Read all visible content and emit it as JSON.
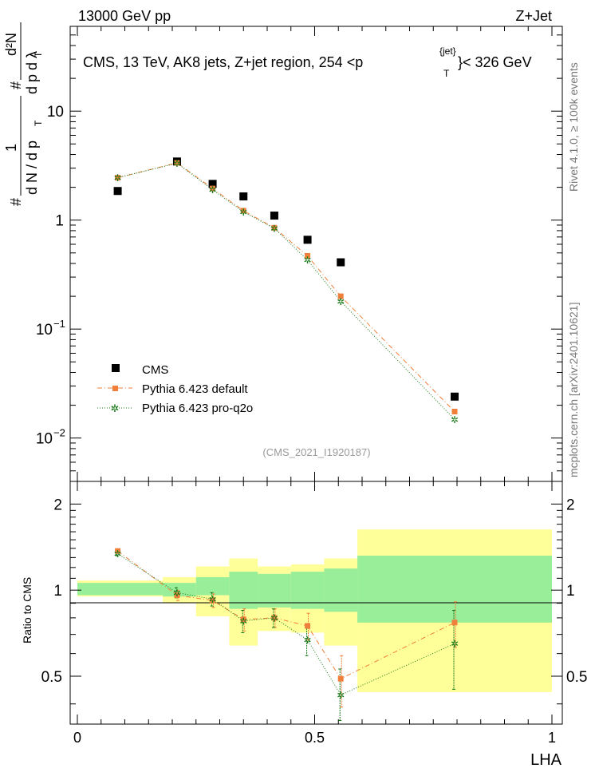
{
  "header": {
    "left": "13000 GeV pp",
    "right": "Z+Jet"
  },
  "side_labels": {
    "rivet": "Rivet 4.1.0, ≥ 100k events",
    "mcplots": "mcplots.cern.ch [arXiv:2401.10621]"
  },
  "chart_data": {
    "type": "scatter",
    "title": "CMS, 13 TeV, AK8 jets, Z+jet region, 254 <p",
    "title_sup": "{jet}",
    "title_sub": "T",
    "title_end": "}< 326 GeV",
    "watermark": "(CMS_2021_I1920187)",
    "ylabel_main": "1/(dN/dpT) d²N/dpT dλ",
    "ylabel_ratio": "Ratio to CMS",
    "xlabel": "LHA",
    "xlim": [
      0,
      1
    ],
    "ylim_main": [
      0.004,
      60
    ],
    "ylim_ratio": [
      0.34,
      2.4
    ],
    "x_ticks": [
      "0",
      "0.5",
      "1"
    ],
    "main_y_ticks": [
      "10",
      "1",
      "10",
      "10"
    ],
    "main_y_exponents": [
      "",
      "",
      "−1",
      "−2"
    ],
    "ratio_y_ticks": [
      "2",
      "1",
      "0.5"
    ],
    "legend": [
      {
        "name": "CMS",
        "color": "#000000"
      },
      {
        "name": "Pythia 6.423 default",
        "color": "#ef7f3a"
      },
      {
        "name": "Pythia 6.423 pro-q2o",
        "color": "#1a7a1a"
      }
    ],
    "bins": [
      0.0,
      0.18,
      0.25,
      0.32,
      0.38,
      0.45,
      0.52,
      0.59,
      1.0
    ],
    "x": [
      0.085,
      0.21,
      0.285,
      0.35,
      0.415,
      0.485,
      0.555,
      0.795
    ],
    "series": [
      {
        "name": "CMS",
        "values": [
          1.85,
          3.45,
          2.15,
          1.65,
          1.1,
          0.66,
          0.41,
          0.024
        ]
      },
      {
        "name": "Pythia 6.423 default",
        "values": [
          2.45,
          3.35,
          1.95,
          1.22,
          0.85,
          0.47,
          0.2,
          0.0175
        ],
        "ratio": [
          1.37,
          0.96,
          0.92,
          0.79,
          0.8,
          0.75,
          0.49,
          0.77
        ],
        "ratio_err": [
          0.02,
          0.04,
          0.05,
          0.07,
          0.06,
          0.08,
          0.1,
          0.14
        ]
      },
      {
        "name": "Pythia 6.423 pro-q2o",
        "values": [
          2.45,
          3.33,
          1.9,
          1.19,
          0.84,
          0.43,
          0.18,
          0.0148
        ],
        "ratio": [
          1.34,
          0.98,
          0.93,
          0.78,
          0.8,
          0.67,
          0.43,
          0.65
        ],
        "ratio_err": [
          0.02,
          0.04,
          0.05,
          0.07,
          0.06,
          0.08,
          0.1,
          0.2
        ]
      }
    ],
    "band_inner": [
      [
        0.96,
        1.06
      ],
      [
        0.95,
        1.06
      ],
      [
        0.96,
        1.11
      ],
      [
        0.86,
        1.16
      ],
      [
        0.87,
        1.14
      ],
      [
        0.86,
        1.16
      ],
      [
        0.84,
        1.19
      ],
      [
        0.77,
        1.32
      ]
    ],
    "band_outer": [
      [
        0.95,
        1.08
      ],
      [
        0.9,
        1.11
      ],
      [
        0.81,
        1.21
      ],
      [
        0.64,
        1.29
      ],
      [
        0.72,
        1.21
      ],
      [
        0.71,
        1.23
      ],
      [
        0.64,
        1.29
      ],
      [
        0.44,
        1.63
      ]
    ]
  }
}
